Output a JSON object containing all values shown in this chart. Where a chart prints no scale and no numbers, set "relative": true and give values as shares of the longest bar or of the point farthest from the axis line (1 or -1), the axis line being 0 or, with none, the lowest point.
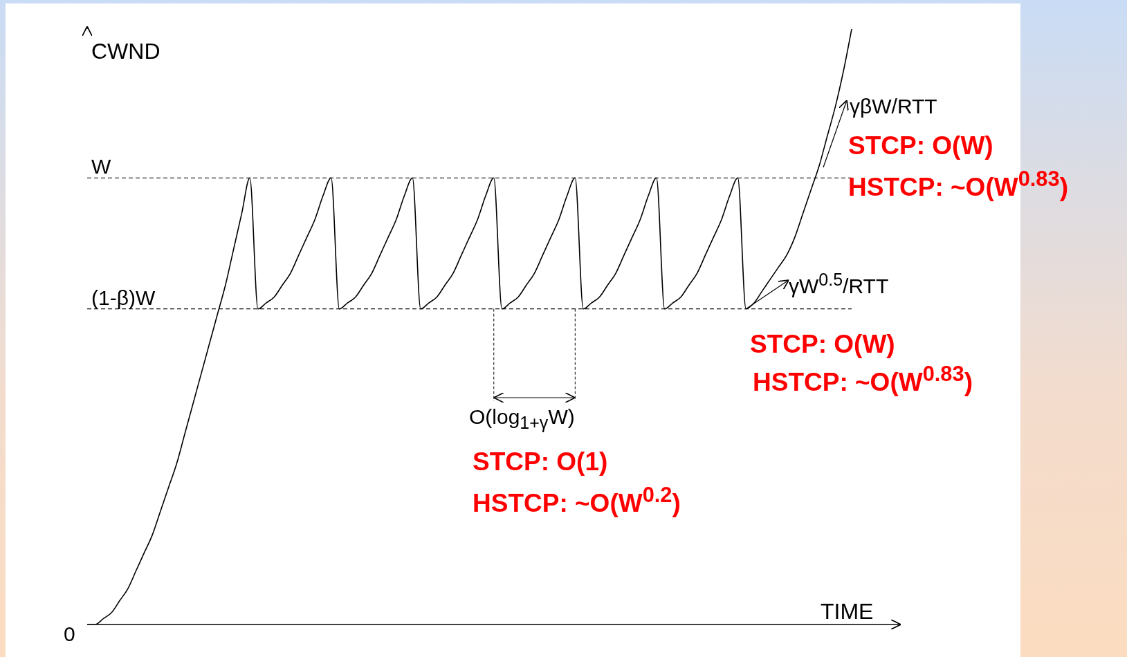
{
  "chart_data": {
    "type": "line",
    "relative": true,
    "xlabel": "TIME",
    "ylabel": "CWND",
    "marker": "none",
    "line_style": "solid",
    "categories": [
      null,
      null,
      null,
      null,
      null,
      null,
      null,
      null,
      null,
      null,
      null,
      null,
      null,
      null,
      null,
      null,
      null,
      null,
      null,
      null,
      null,
      null,
      null,
      null,
      null,
      null,
      null,
      null,
      null,
      null,
      null,
      null,
      null,
      null,
      null,
      null,
      null,
      null,
      null,
      null,
      null,
      null,
      null,
      null,
      null,
      null,
      null,
      null,
      null,
      null,
      null,
      null,
      null,
      null,
      null,
      null,
      null,
      null,
      null,
      null,
      null,
      null,
      null,
      null,
      null,
      null,
      null,
      null,
      null,
      null,
      null,
      null,
      null,
      null,
      null,
      null,
      null,
      null,
      null,
      null,
      null,
      null,
      null,
      null,
      null,
      null,
      null,
      null,
      null,
      null,
      null,
      null,
      null,
      null,
      null
    ],
    "series": [
      {
        "color": "#000000",
        "values": [
          0,
          0,
          0.01,
          0.02,
          0.04,
          0.06,
          0.09,
          0.12,
          0.15,
          0.19,
          0.23,
          0.27,
          0.32,
          0.37,
          0.42,
          0.47,
          0.52,
          0.57,
          0.63,
          0.69,
          0.75,
          0.53,
          0.54,
          0.55,
          0.57,
          0.59,
          0.62,
          0.65,
          0.68,
          0.72,
          0.75,
          0.53,
          0.54,
          0.55,
          0.57,
          0.59,
          0.62,
          0.65,
          0.68,
          0.72,
          0.75,
          0.53,
          0.54,
          0.55,
          0.57,
          0.59,
          0.62,
          0.65,
          0.68,
          0.72,
          0.75,
          0.53,
          0.54,
          0.55,
          0.57,
          0.59,
          0.62,
          0.65,
          0.68,
          0.72,
          0.75,
          0.53,
          0.54,
          0.55,
          0.57,
          0.59,
          0.62,
          0.65,
          0.68,
          0.72,
          0.75,
          0.53,
          0.54,
          0.55,
          0.57,
          0.59,
          0.62,
          0.65,
          0.68,
          0.72,
          0.75,
          0.53,
          0.54,
          0.56,
          0.58,
          0.6,
          0.62,
          0.65,
          0.69,
          0.73,
          0.77,
          0.82,
          0.87,
          0.93,
          1
        ]
      }
    ],
    "ref_lines": [
      {
        "axis": "y",
        "value": 0.75,
        "label": "W",
        "line_style": "dashed",
        "color": "#000000"
      },
      {
        "axis": "y",
        "value": 0.53,
        "label": "(1-β)W",
        "line_style": "dashed",
        "color": "#000000"
      }
    ],
    "annotations": [
      "γβW/RTT",
      "γW$^{0.5}$/RTT",
      "O(log$_{1+γ}$W)",
      "STCP: O(W)",
      "HSTCP: ~O(W$^{0.83}$)",
      "STCP: O(W)",
      "HSTCP: ~O(W$^{0.83}$)",
      "STCP: O(1)",
      "HSTCP: ~O(W$^{0.2}$)",
      "0"
    ]
  }
}
